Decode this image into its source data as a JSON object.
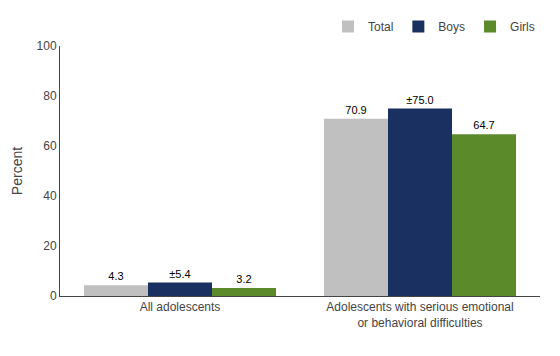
{
  "chart_data": {
    "type": "bar",
    "categories": [
      "All adolescents",
      "Adolescents with serious emotional\nor behavioral difficulties"
    ],
    "series": [
      {
        "name": "Total",
        "color": "#c0c0c0",
        "values": [
          4.3,
          70.9
        ],
        "value_labels": [
          "4.3",
          "70.9"
        ]
      },
      {
        "name": "Boys",
        "color": "#1a3060",
        "values": [
          5.4,
          75.0
        ],
        "value_labels": [
          "±5.4",
          "±75.0"
        ]
      },
      {
        "name": "Girls",
        "color": "#5a8a2a",
        "values": [
          3.2,
          64.7
        ],
        "value_labels": [
          "3.2",
          "64.7"
        ]
      }
    ],
    "ylabel": "Percent",
    "ylim": [
      0,
      100
    ],
    "yticks": [
      0,
      20,
      40,
      60,
      80,
      100
    ],
    "data_labels": true,
    "legend": "upper right",
    "grid": false
  }
}
